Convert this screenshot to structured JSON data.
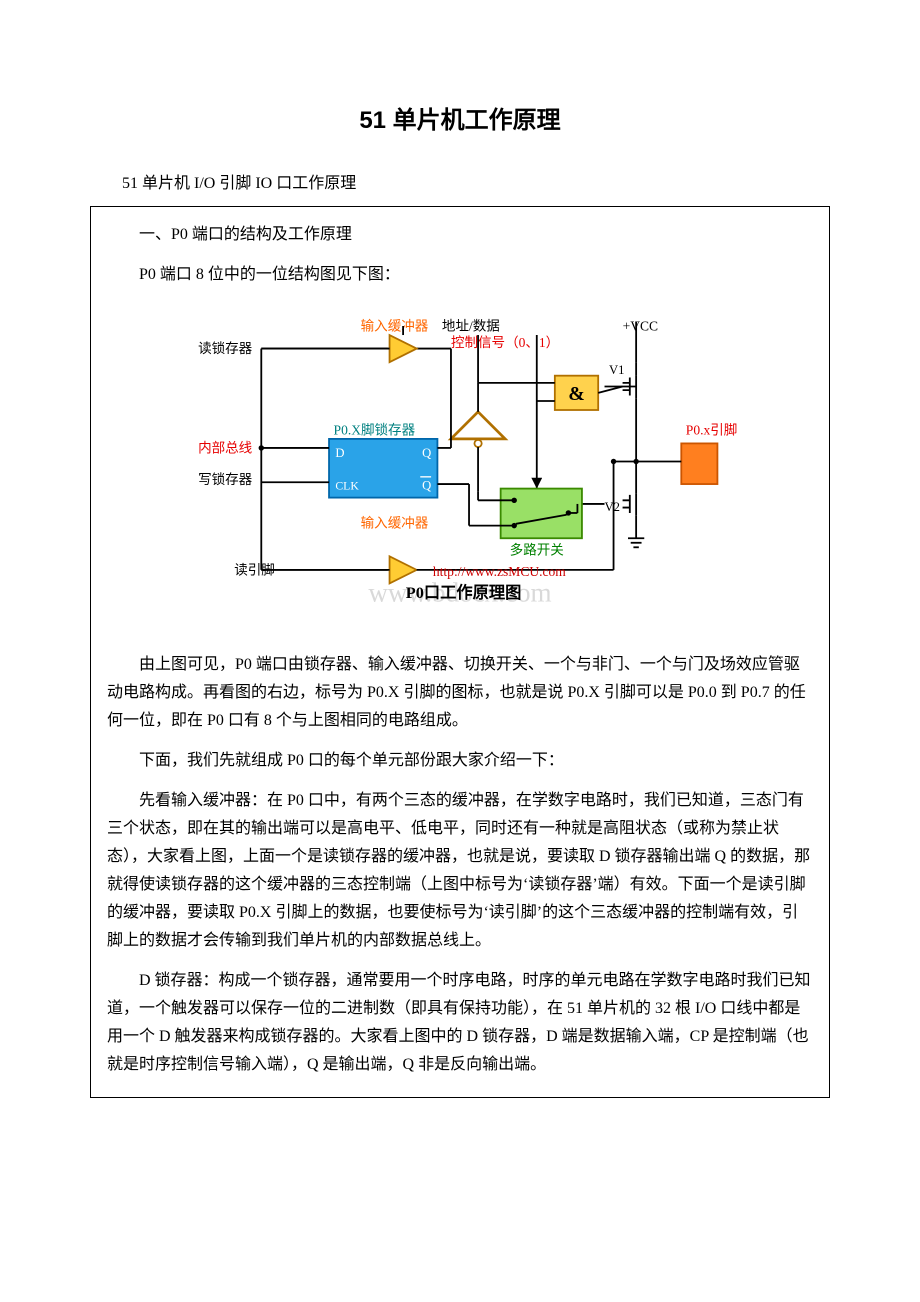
{
  "title": "51 单片机工作原理",
  "intro": "51 单片机 I/O 引脚 IO 口工作原理",
  "box": {
    "h1": "一、P0 端口的结构及工作原理",
    "h2": "P0 端口 8 位中的一位结构图见下图：",
    "p1": "由上图可见，P0 端口由锁存器、输入缓冲器、切换开关、一个与非门、一个与门及场效应管驱动电路构成。再看图的右边，标号为 P0.X 引脚的图标，也就是说 P0.X 引脚可以是 P0.0 到 P0.7 的任何一位，即在 P0 口有 8 个与上图相同的电路组成。",
    "p2": "下面，我们先就组成 P0 口的每个单元部份跟大家介绍一下：",
    "p3": "先看输入缓冲器：在 P0 口中，有两个三态的缓冲器，在学数字电路时，我们已知道，三态门有三个状态，即在其的输出端可以是高电平、低电平，同时还有一种就是高阻状态（或称为禁止状态），大家看上图，上面一个是读锁存器的缓冲器，也就是说，要读取 D 锁存器输出端 Q 的数据，那就得使读锁存器的这个缓冲器的三态控制端（上图中标号为‘读锁存器’端）有效。下面一个是读引脚的缓冲器，要读取 P0.X 引脚上的数据，也要使标号为‘读引脚’的这个三态缓冲器的控制端有效，引脚上的数据才会传输到我们单片机的内部数据总线上。",
    "p4": "D 锁存器：构成一个锁存器，通常要用一个时序电路，时序的单元电路在学数字电路时我们已知道，一个触发器可以保存一位的二进制数（即具有保持功能），在 51 单片机的 32 根 I/O 口线中都是用一个 D 触发器来构成锁存器的。大家看上图中的 D 锁存器，D 端是数据输入端，CP 是控制端（也就是时序控制信号输入端），Q 是输出端，Q 非是反向输出端。"
  },
  "diagram": {
    "labels": {
      "in_buf_top": "输入缓冲器",
      "addr_data": "地址/数据",
      "ctrl_sig": "控制信号（0、1）",
      "vcc": "+VCC",
      "read_latch": "读锁存器",
      "latch_name": "P0.X脚锁存器",
      "D": "D",
      "Q": "Q",
      "CLK": "CLK",
      "Qbar": "Q",
      "internal_bus": "内部总线",
      "write_latch": "写锁存器",
      "in_buf_bot": "输入缓冲器",
      "mux": "多路开关",
      "read_pin": "读引脚",
      "v1": "V1",
      "v2": "V2",
      "and": "&",
      "pin": "P0.x引脚",
      "url": "http://www.zsMCU.com",
      "caption": "P0口工作原理图",
      "watermark": "www.bdocx.com"
    },
    "colors": {
      "orange_text": "#ff6600",
      "red_text": "#e60000",
      "teal_text": "#008080",
      "blue_text": "#0033cc",
      "green_text": "#008000",
      "wire": "#000000",
      "latch_fill": "#2aa3e8",
      "latch_stroke": "#0066aa",
      "buf_fill": "#ffcc33",
      "buf_stroke": "#b07000",
      "inv_fill": "#ffffff",
      "inv_stroke": "#b07000",
      "and_fill": "#ffd24d",
      "and_stroke": "#b07000",
      "mux_fill": "#99e066",
      "mux_stroke": "#3a8a00",
      "pin_fill": "#ff7f1f",
      "pin_stroke": "#cc5500",
      "box_line": "#000000",
      "url_color": "#cc0000",
      "watermark": "#d9d9d9"
    }
  }
}
